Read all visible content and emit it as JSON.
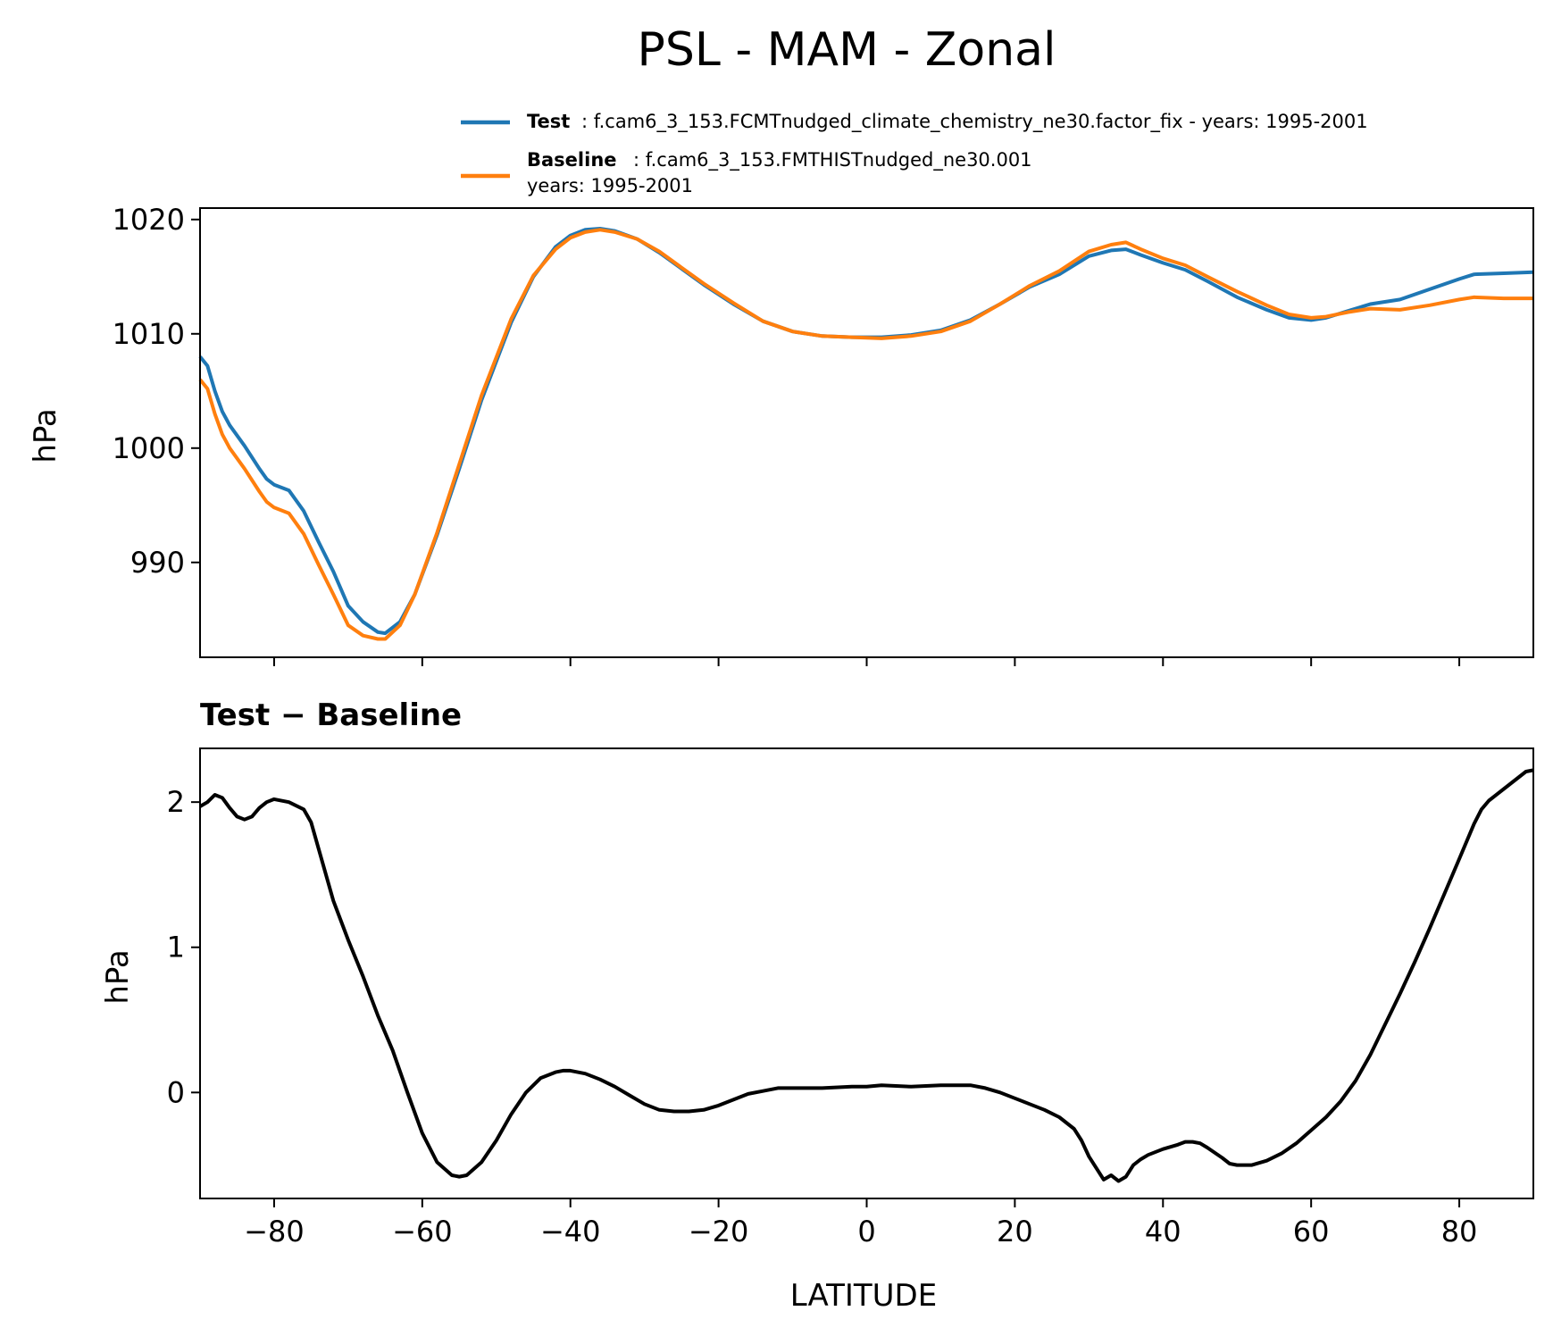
{
  "figure": {
    "title": "PSL - MAM - Zonal",
    "legend": [
      {
        "bold": "Test",
        "text": ": f.cam6_3_153.FCMTnudged_climate_chemistry_ne30.factor_fix - years: 1995-2001",
        "color": "#1f77b4"
      },
      {
        "bold": "Baseline",
        "text": ": f.cam6_3_153.FMTHISTnudged_ne30.001",
        "text2": "years: 1995-2001",
        "color": "#ff7f0e"
      }
    ]
  },
  "chart_data": [
    {
      "type": "line",
      "ylabel": "hPa",
      "xlim": [
        -90,
        90
      ],
      "ylim": [
        981.7,
        1021
      ],
      "yticks": [
        "990",
        "1000",
        "1010",
        "1020"
      ],
      "ytick_values": [
        990,
        1000,
        1010,
        1020
      ],
      "xtick_values": [
        -80,
        -60,
        -40,
        -20,
        0,
        20,
        40,
        60,
        80
      ],
      "legend_position": "top (above axes)",
      "series": [
        {
          "name": "Test",
          "color": "#1f77b4",
          "points": [
            [
              -90,
              1008.0
            ],
            [
              -89,
              1007.2
            ],
            [
              -88,
              1005.0
            ],
            [
              -87,
              1003.2
            ],
            [
              -86,
              1002.0
            ],
            [
              -84,
              1000.2
            ],
            [
              -82,
              998.2
            ],
            [
              -81,
              997.3
            ],
            [
              -80,
              996.8
            ],
            [
              -78,
              996.3
            ],
            [
              -76,
              994.5
            ],
            [
              -74,
              991.8
            ],
            [
              -72,
              989.2
            ],
            [
              -70,
              986.2
            ],
            [
              -68,
              984.8
            ],
            [
              -66,
              983.9
            ],
            [
              -65,
              983.8
            ],
            [
              -63,
              984.8
            ],
            [
              -61,
              987.2
            ],
            [
              -58,
              992.4
            ],
            [
              -55,
              998.2
            ],
            [
              -52,
              1004.2
            ],
            [
              -48,
              1011.0
            ],
            [
              -45,
              1015.0
            ],
            [
              -42,
              1017.6
            ],
            [
              -40,
              1018.6
            ],
            [
              -38,
              1019.1
            ],
            [
              -36,
              1019.2
            ],
            [
              -34,
              1019.0
            ],
            [
              -31,
              1018.3
            ],
            [
              -28,
              1017.1
            ],
            [
              -25,
              1015.7
            ],
            [
              -22,
              1014.3
            ],
            [
              -18,
              1012.6
            ],
            [
              -14,
              1011.1
            ],
            [
              -10,
              1010.2
            ],
            [
              -6,
              1009.8
            ],
            [
              -2,
              1009.7
            ],
            [
              2,
              1009.7
            ],
            [
              6,
              1009.9
            ],
            [
              10,
              1010.3
            ],
            [
              14,
              1011.2
            ],
            [
              18,
              1012.6
            ],
            [
              22,
              1014.1
            ],
            [
              26,
              1015.2
            ],
            [
              30,
              1016.8
            ],
            [
              33,
              1017.3
            ],
            [
              35,
              1017.4
            ],
            [
              37,
              1016.9
            ],
            [
              40,
              1016.2
            ],
            [
              43,
              1015.6
            ],
            [
              46,
              1014.6
            ],
            [
              50,
              1013.2
            ],
            [
              54,
              1012.1
            ],
            [
              57,
              1011.4
            ],
            [
              60,
              1011.2
            ],
            [
              62,
              1011.4
            ],
            [
              65,
              1012.0
            ],
            [
              68,
              1012.6
            ],
            [
              72,
              1013.0
            ],
            [
              76,
              1013.9
            ],
            [
              80,
              1014.8
            ],
            [
              82,
              1015.2
            ],
            [
              86,
              1015.3
            ],
            [
              90,
              1015.4
            ]
          ]
        },
        {
          "name": "Baseline",
          "color": "#ff7f0e",
          "points": [
            [
              -90,
              1006.0
            ],
            [
              -89,
              1005.2
            ],
            [
              -88,
              1003.0
            ],
            [
              -87,
              1001.2
            ],
            [
              -86,
              1000.0
            ],
            [
              -84,
              998.2
            ],
            [
              -82,
              996.2
            ],
            [
              -81,
              995.3
            ],
            [
              -80,
              994.8
            ],
            [
              -78,
              994.3
            ],
            [
              -76,
              992.5
            ],
            [
              -74,
              989.8
            ],
            [
              -72,
              987.2
            ],
            [
              -70,
              984.5
            ],
            [
              -68,
              983.6
            ],
            [
              -66,
              983.3
            ],
            [
              -65,
              983.3
            ],
            [
              -63,
              984.5
            ],
            [
              -61,
              987.2
            ],
            [
              -58,
              992.6
            ],
            [
              -55,
              998.6
            ],
            [
              -52,
              1004.6
            ],
            [
              -48,
              1011.3
            ],
            [
              -45,
              1015.1
            ],
            [
              -42,
              1017.4
            ],
            [
              -40,
              1018.4
            ],
            [
              -38,
              1018.9
            ],
            [
              -36,
              1019.1
            ],
            [
              -34,
              1018.9
            ],
            [
              -31,
              1018.3
            ],
            [
              -28,
              1017.2
            ],
            [
              -25,
              1015.8
            ],
            [
              -22,
              1014.4
            ],
            [
              -18,
              1012.7
            ],
            [
              -14,
              1011.1
            ],
            [
              -10,
              1010.2
            ],
            [
              -6,
              1009.8
            ],
            [
              -2,
              1009.7
            ],
            [
              2,
              1009.6
            ],
            [
              6,
              1009.8
            ],
            [
              10,
              1010.2
            ],
            [
              14,
              1011.1
            ],
            [
              18,
              1012.6
            ],
            [
              22,
              1014.2
            ],
            [
              26,
              1015.5
            ],
            [
              30,
              1017.2
            ],
            [
              33,
              1017.8
            ],
            [
              35,
              1018.0
            ],
            [
              37,
              1017.4
            ],
            [
              40,
              1016.6
            ],
            [
              43,
              1016.0
            ],
            [
              46,
              1015.0
            ],
            [
              50,
              1013.7
            ],
            [
              54,
              1012.5
            ],
            [
              57,
              1011.7
            ],
            [
              60,
              1011.4
            ],
            [
              62,
              1011.5
            ],
            [
              65,
              1011.9
            ],
            [
              68,
              1012.2
            ],
            [
              72,
              1012.1
            ],
            [
              76,
              1012.5
            ],
            [
              80,
              1013.0
            ],
            [
              82,
              1013.2
            ],
            [
              86,
              1013.1
            ],
            [
              90,
              1013.1
            ]
          ]
        }
      ]
    },
    {
      "type": "line",
      "title": "Test − Baseline",
      "ylabel": "hPa",
      "xlabel": "LATITUDE",
      "xlim": [
        -90,
        90
      ],
      "ylim": [
        -0.73,
        2.37
      ],
      "yticks": [
        "0",
        "1",
        "2"
      ],
      "ytick_values": [
        0,
        1,
        2
      ],
      "xticks": [
        "−80",
        "−60",
        "−40",
        "−20",
        "0",
        "20",
        "40",
        "60",
        "80"
      ],
      "xtick_values": [
        -80,
        -60,
        -40,
        -20,
        0,
        20,
        40,
        60,
        80
      ],
      "series": [
        {
          "color": "#000000",
          "points": [
            [
              -90,
              1.97
            ],
            [
              -89,
              2.0
            ],
            [
              -88,
              2.05
            ],
            [
              -87,
              2.03
            ],
            [
              -86,
              1.96
            ],
            [
              -85,
              1.9
            ],
            [
              -84,
              1.88
            ],
            [
              -83,
              1.9
            ],
            [
              -82,
              1.96
            ],
            [
              -81,
              2.0
            ],
            [
              -80,
              2.02
            ],
            [
              -78,
              2.0
            ],
            [
              -76,
              1.95
            ],
            [
              -75,
              1.86
            ],
            [
              -74,
              1.68
            ],
            [
              -72,
              1.32
            ],
            [
              -70,
              1.05
            ],
            [
              -68,
              0.8
            ],
            [
              -66,
              0.53
            ],
            [
              -64,
              0.29
            ],
            [
              -62,
              0.0
            ],
            [
              -60,
              -0.28
            ],
            [
              -58,
              -0.48
            ],
            [
              -56,
              -0.57
            ],
            [
              -55,
              -0.58
            ],
            [
              -54,
              -0.57
            ],
            [
              -52,
              -0.48
            ],
            [
              -50,
              -0.33
            ],
            [
              -48,
              -0.15
            ],
            [
              -46,
              0.0
            ],
            [
              -44,
              0.1
            ],
            [
              -42,
              0.14
            ],
            [
              -41,
              0.15
            ],
            [
              -40,
              0.15
            ],
            [
              -38,
              0.13
            ],
            [
              -36,
              0.09
            ],
            [
              -34,
              0.04
            ],
            [
              -32,
              -0.02
            ],
            [
              -30,
              -0.08
            ],
            [
              -28,
              -0.12
            ],
            [
              -26,
              -0.13
            ],
            [
              -24,
              -0.13
            ],
            [
              -22,
              -0.12
            ],
            [
              -20,
              -0.09
            ],
            [
              -18,
              -0.05
            ],
            [
              -16,
              -0.01
            ],
            [
              -14,
              0.01
            ],
            [
              -12,
              0.03
            ],
            [
              -10,
              0.03
            ],
            [
              -6,
              0.03
            ],
            [
              -2,
              0.04
            ],
            [
              0,
              0.04
            ],
            [
              2,
              0.05
            ],
            [
              6,
              0.04
            ],
            [
              10,
              0.05
            ],
            [
              14,
              0.05
            ],
            [
              16,
              0.03
            ],
            [
              18,
              0.0
            ],
            [
              20,
              -0.04
            ],
            [
              22,
              -0.08
            ],
            [
              24,
              -0.12
            ],
            [
              26,
              -0.17
            ],
            [
              28,
              -0.25
            ],
            [
              29,
              -0.33
            ],
            [
              30,
              -0.44
            ],
            [
              31,
              -0.52
            ],
            [
              32,
              -0.6
            ],
            [
              33,
              -0.57
            ],
            [
              34,
              -0.61
            ],
            [
              35,
              -0.58
            ],
            [
              36,
              -0.5
            ],
            [
              37,
              -0.46
            ],
            [
              38,
              -0.43
            ],
            [
              40,
              -0.39
            ],
            [
              42,
              -0.36
            ],
            [
              43,
              -0.34
            ],
            [
              44,
              -0.34
            ],
            [
              45,
              -0.35
            ],
            [
              46,
              -0.38
            ],
            [
              48,
              -0.45
            ],
            [
              49,
              -0.49
            ],
            [
              50,
              -0.5
            ],
            [
              52,
              -0.5
            ],
            [
              54,
              -0.47
            ],
            [
              56,
              -0.42
            ],
            [
              58,
              -0.35
            ],
            [
              60,
              -0.26
            ],
            [
              62,
              -0.17
            ],
            [
              64,
              -0.06
            ],
            [
              66,
              0.08
            ],
            [
              68,
              0.26
            ],
            [
              70,
              0.47
            ],
            [
              72,
              0.68
            ],
            [
              74,
              0.9
            ],
            [
              76,
              1.13
            ],
            [
              78,
              1.37
            ],
            [
              80,
              1.61
            ],
            [
              82,
              1.85
            ],
            [
              83,
              1.95
            ],
            [
              84,
              2.01
            ],
            [
              86,
              2.09
            ],
            [
              88,
              2.17
            ],
            [
              89,
              2.21
            ],
            [
              90,
              2.22
            ]
          ]
        }
      ]
    }
  ]
}
